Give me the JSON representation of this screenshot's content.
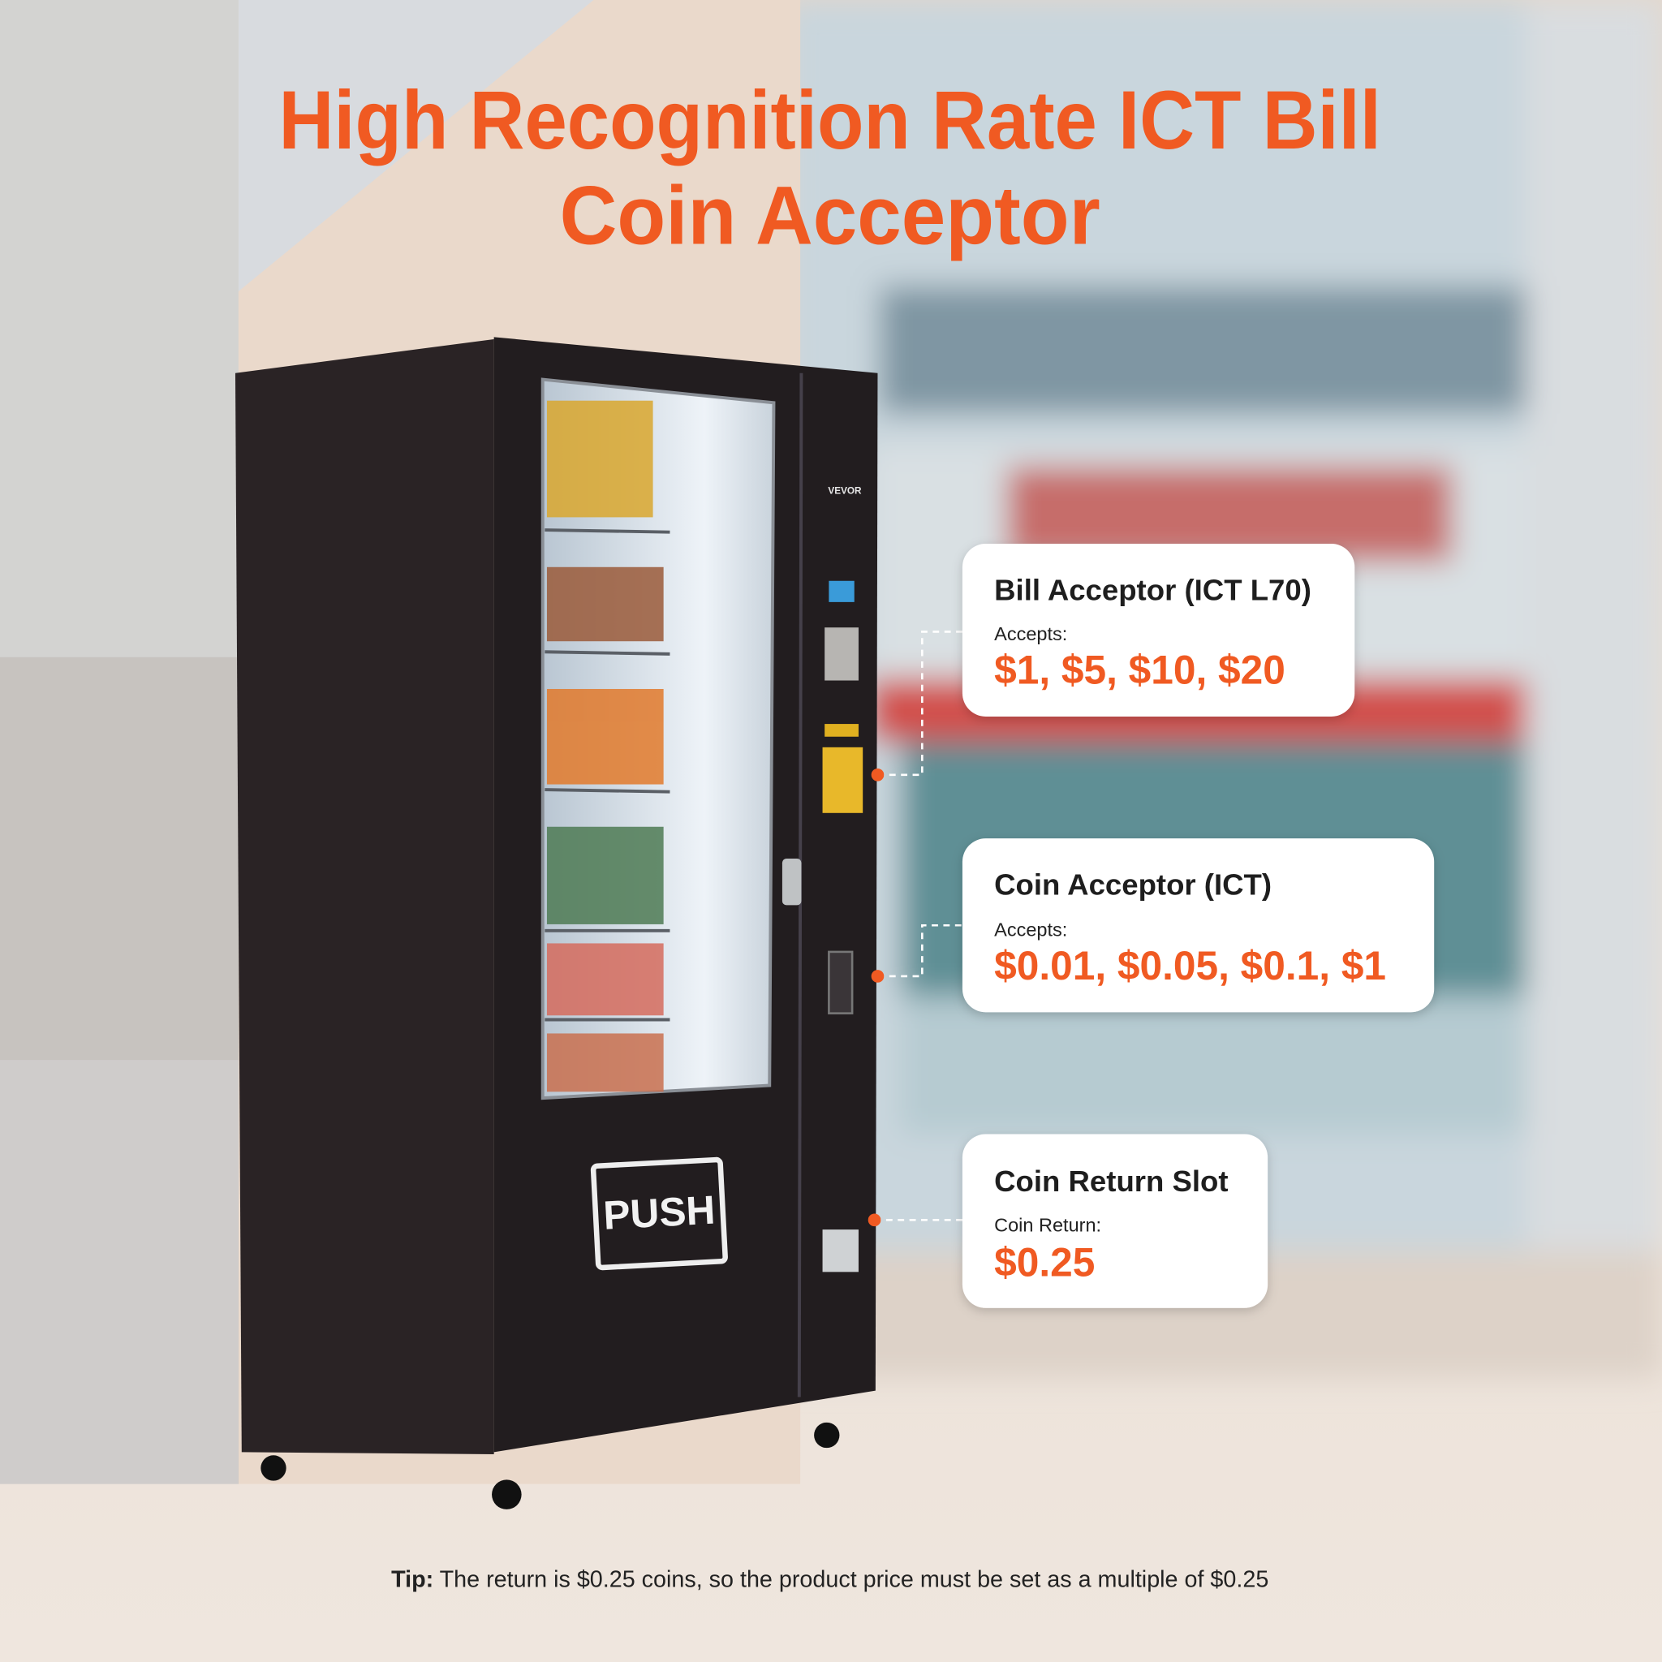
{
  "header": {
    "title_lines": [
      "High Recognition Rate ICT Bill",
      "Coin Acceptor"
    ]
  },
  "machine": {
    "brand": "VEVOR",
    "door_label": "PUSH"
  },
  "callouts": [
    {
      "title": "Bill Acceptor (ICT L70)",
      "caption": "Accepts:",
      "values": "$1, $5, $10, $20"
    },
    {
      "title": "Coin Acceptor (ICT)",
      "caption": "Accepts:",
      "values": "$0.01, $0.05, $0.1, $1"
    },
    {
      "title": "Coin Return Slot",
      "caption": "Coin Return:",
      "values": "$0.25"
    }
  ],
  "footer": {
    "tip_label": "Tip:",
    "tip_text": " The return is $0.25 coins, so the product price must be set as a multiple of $0.25"
  }
}
